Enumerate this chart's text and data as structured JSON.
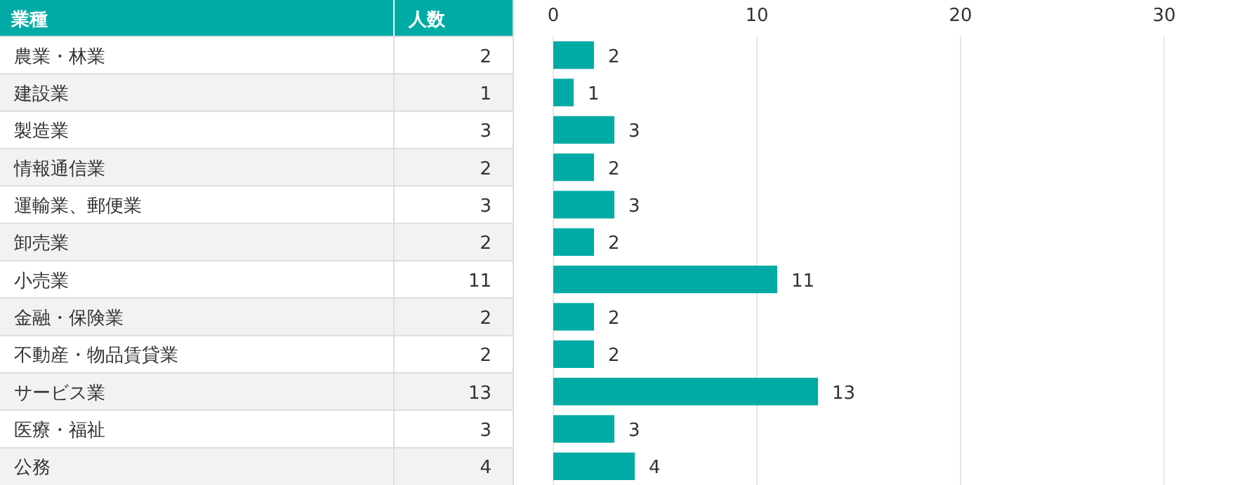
{
  "chart_data": {
    "type": "bar",
    "orientation": "horizontal",
    "annotations": [
      "業種",
      "人数",
      "2",
      "1",
      "3",
      "2",
      "3",
      "2",
      "11",
      "2",
      "2",
      "13",
      "3",
      "4"
    ],
    "categories": [
      "農業・林業",
      "建設業",
      "製造業",
      "情報通信業",
      "運輸業、郵便業",
      "卸売業",
      "小売業",
      "金融・保険業",
      "不動産・物品賃貸業",
      "サービス業",
      "医療・福祉",
      "公務"
    ],
    "values": [
      2,
      1,
      3,
      2,
      3,
      2,
      11,
      2,
      2,
      13,
      3,
      4
    ],
    "color": "#00aba5",
    "value_labels": [
      "2",
      "1",
      "3",
      "2",
      "3",
      "2",
      "11",
      "2",
      "2",
      "13",
      "3",
      "4"
    ],
    "x2lim": [
      0,
      30
    ],
    "x2ticks": [
      0,
      10,
      20,
      30
    ],
    "grid": "x"
  }
}
